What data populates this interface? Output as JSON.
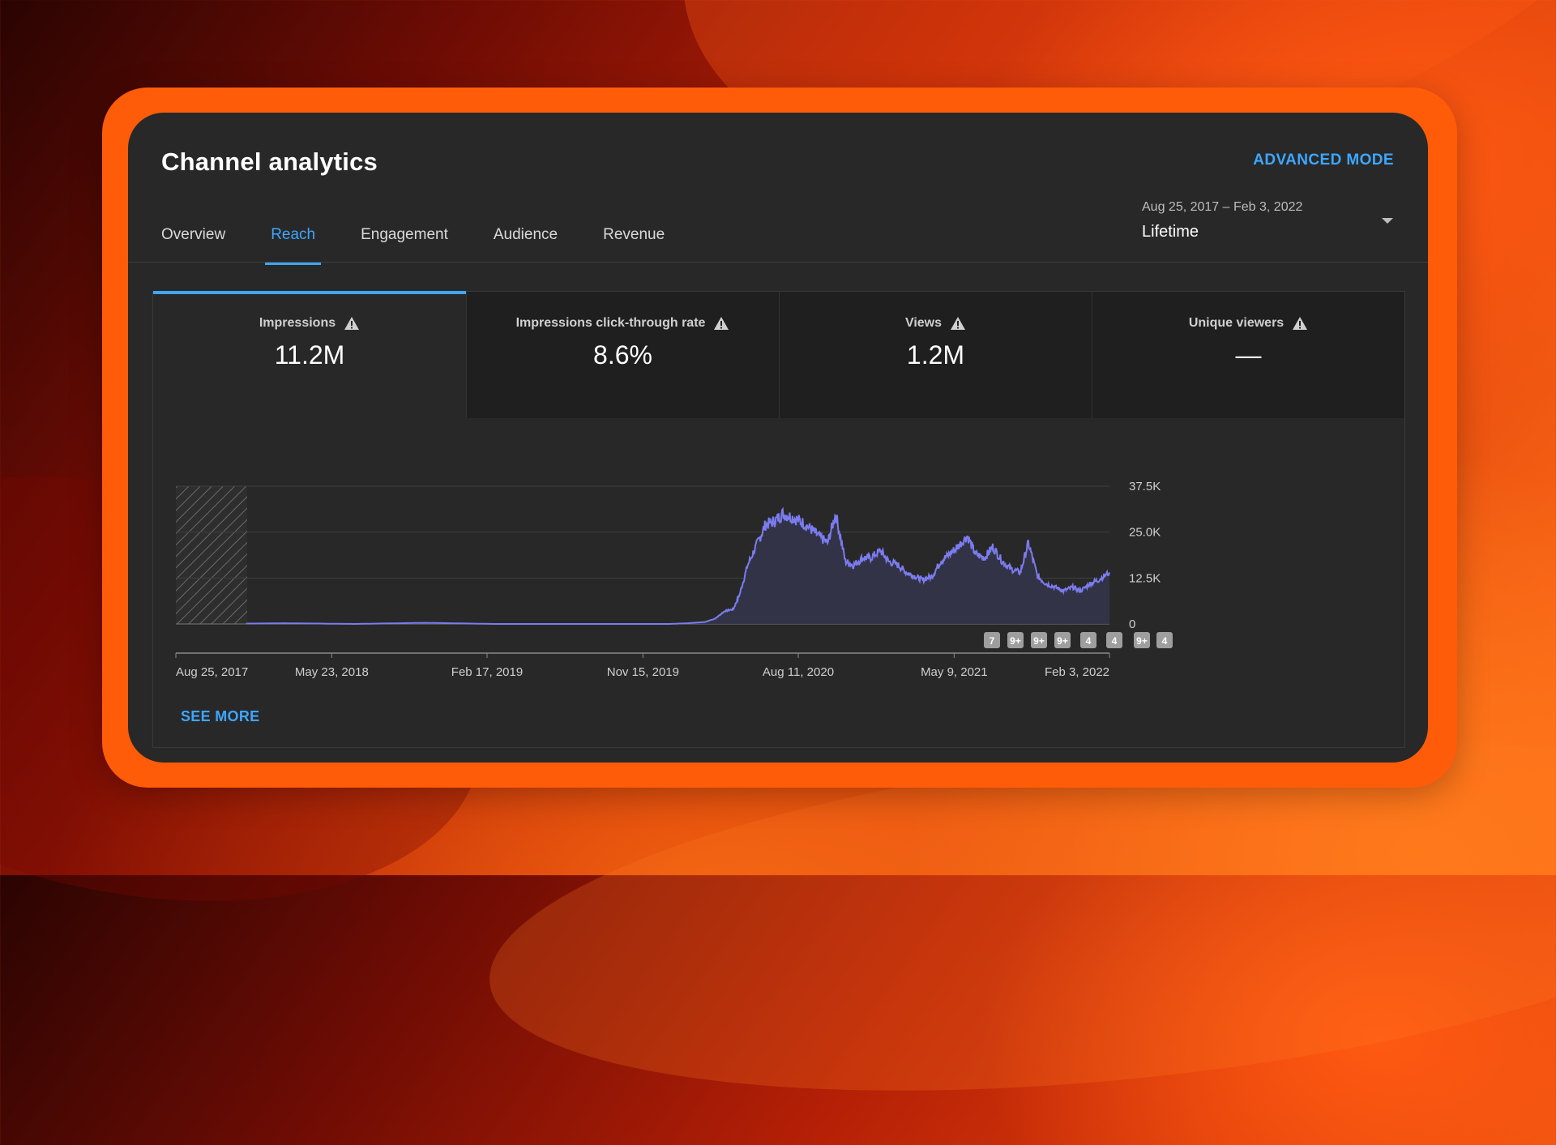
{
  "header": {
    "title": "Channel analytics",
    "advanced_mode": "ADVANCED MODE"
  },
  "tabs": [
    {
      "label": "Overview"
    },
    {
      "label": "Reach"
    },
    {
      "label": "Engagement"
    },
    {
      "label": "Audience"
    },
    {
      "label": "Revenue"
    }
  ],
  "date_range": {
    "dates": "Aug 25, 2017 – Feb 3, 2022",
    "label": "Lifetime"
  },
  "metrics": [
    {
      "label": "Impressions",
      "value": "11.2M"
    },
    {
      "label": "Impressions click-through rate",
      "value": "8.6%"
    },
    {
      "label": "Views",
      "value": "1.2M"
    },
    {
      "label": "Unique viewers",
      "value": "—"
    }
  ],
  "see_more": "SEE MORE",
  "chart_data": {
    "type": "area",
    "series": [
      {
        "x": [
          "2017-08-25",
          "2017-11-01",
          "2018-03-01",
          "2018-07-01",
          "2018-11-01",
          "2019-03-01",
          "2019-07-01",
          "2019-11-01",
          "2020-01-01",
          "2020-02-01",
          "2020-03-01",
          "2020-03-20",
          "2020-04-05",
          "2020-04-20",
          "2020-05-01",
          "2020-05-15",
          "2020-06-01",
          "2020-06-15",
          "2020-07-01",
          "2020-07-15",
          "2020-08-01",
          "2020-08-15",
          "2020-09-01",
          "2020-09-15",
          "2020-10-01",
          "2020-10-15",
          "2020-11-01",
          "2020-11-15",
          "2020-12-01",
          "2020-12-15",
          "2021-01-01",
          "2021-01-15",
          "2021-02-01",
          "2021-02-15",
          "2021-03-01",
          "2021-03-15",
          "2021-04-01",
          "2021-04-15",
          "2021-05-01",
          "2021-05-15",
          "2021-06-01",
          "2021-06-15",
          "2021-07-01",
          "2021-07-15",
          "2021-08-01",
          "2021-08-15",
          "2021-09-01",
          "2021-09-15",
          "2021-10-01",
          "2021-10-15",
          "2021-11-01",
          "2021-11-15",
          "2021-12-01",
          "2021-12-15",
          "2022-01-01",
          "2022-01-15",
          "2022-02-03"
        ],
        "values": [
          0,
          0,
          200,
          0,
          300,
          0,
          0,
          0,
          0,
          200,
          500,
          1500,
          3500,
          4000,
          8000,
          16000,
          22000,
          27000,
          28000,
          30000,
          29000,
          28000,
          26000,
          24000,
          22000,
          30000,
          17000,
          16000,
          18000,
          18000,
          20000,
          17000,
          16000,
          14000,
          13000,
          12000,
          13000,
          17000,
          19000,
          21000,
          24000,
          19000,
          18000,
          21000,
          17000,
          15000,
          14000,
          22000,
          13000,
          11000,
          10000,
          9000,
          10000,
          9000,
          11000,
          12000,
          14000
        ]
      }
    ],
    "yticks": [
      "37.5K",
      "25.0K",
      "12.5K",
      "0"
    ],
    "ylim": [
      0,
      37500
    ],
    "xticks": [
      "Aug 25, 2017",
      "May 23, 2018",
      "Feb 17, 2019",
      "Nov 15, 2019",
      "Aug 11, 2020",
      "May 9, 2021",
      "Feb 3, 2022"
    ],
    "markers": [
      "7",
      "9+",
      "9+",
      "9+",
      "4",
      "4",
      "9+",
      "4"
    ],
    "colors": {
      "line": "#7b7cf0",
      "fill": "#34344a",
      "grid": "#3f3f3f"
    }
  }
}
